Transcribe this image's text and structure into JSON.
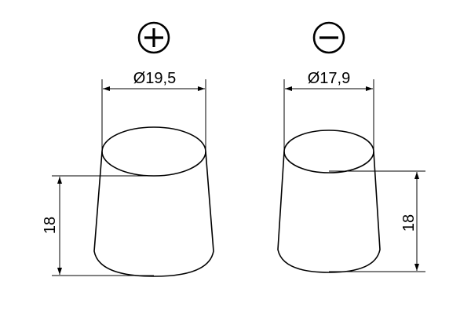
{
  "terminals": [
    {
      "polarity": "positive",
      "symbol_icon": "plus-circle-icon",
      "diameter_label": "Ø19,5",
      "height_label": "18"
    },
    {
      "polarity": "negative",
      "symbol_icon": "minus-circle-icon",
      "diameter_label": "Ø17,9",
      "height_label": "18"
    }
  ],
  "colors": {
    "line": "#000000",
    "background": "#ffffff"
  }
}
